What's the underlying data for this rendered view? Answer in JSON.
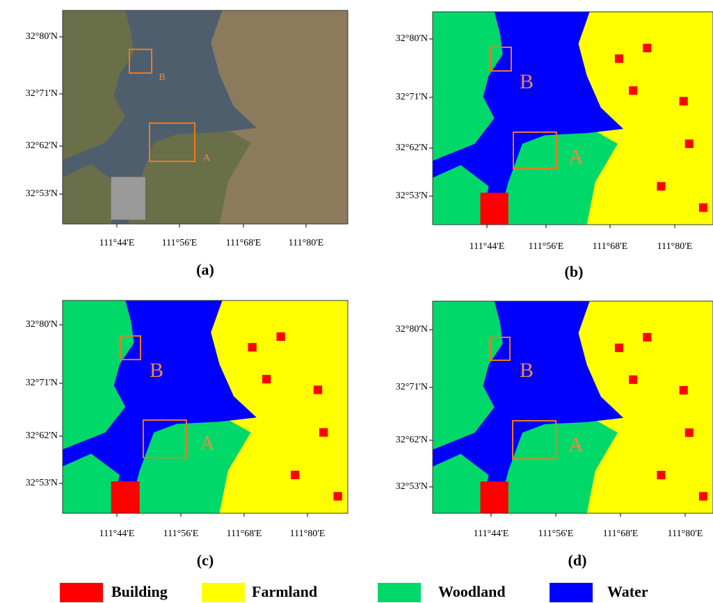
{
  "panels": [
    {
      "label": "(a)",
      "style": "satellite",
      "lat_labels": [
        "32°80'N",
        "32°71'N",
        "32°62'N",
        "32°53'N"
      ],
      "lon_labels": [
        "111°44'E",
        "111°56'E",
        "111°68'E",
        "111°80'E"
      ],
      "boxes": [
        "A",
        "B"
      ]
    },
    {
      "label": "(b)",
      "style": "classified",
      "lat_labels": [
        "32°80'N",
        "32°71'N",
        "32°62'N",
        "32°53'N"
      ],
      "lon_labels": [
        "111°44'E",
        "111°56'E",
        "111°68'E",
        "111°80'E"
      ],
      "boxes": [
        "A",
        "B"
      ]
    },
    {
      "label": "(c)",
      "style": "classified",
      "lat_labels": [
        "32°80'N",
        "32°71'N",
        "32°62'N",
        "32°53'N"
      ],
      "lon_labels": [
        "111°44'E",
        "111°56'E",
        "111°68'E",
        "111°80'E"
      ],
      "boxes": [
        "A",
        "B"
      ]
    },
    {
      "label": "(d)",
      "style": "classified",
      "lat_labels": [
        "32°80'N",
        "32°71'N",
        "32°62'N",
        "32°53'N"
      ],
      "lon_labels": [
        "111°44'E",
        "111°56'E",
        "111°68'E",
        "111°80'E"
      ],
      "boxes": [
        "A",
        "B"
      ]
    }
  ],
  "legend": [
    {
      "name": "Building",
      "color": "#ff0000"
    },
    {
      "name": "Farmland",
      "color": "#ffff00"
    },
    {
      "name": "Woodland",
      "color": "#00d96a"
    },
    {
      "name": "Water",
      "color": "#0000ff"
    }
  ]
}
